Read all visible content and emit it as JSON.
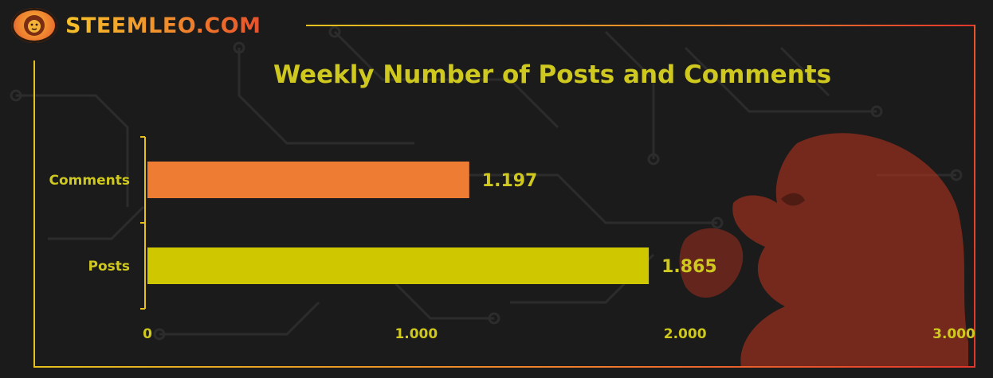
{
  "brand": {
    "name": "STEEMLEO.COM",
    "logo_icon": "lion-head-icon"
  },
  "colors": {
    "background": "#1b1b1b",
    "title": "#cfc81e",
    "comments_bar": "#ee7d33",
    "posts_bar": "#cfc800",
    "frame_yellow": "#e6c11e",
    "frame_red": "#e0352c",
    "watermark": "#c0341e"
  },
  "watermark_icon": "lion-icon",
  "chart_data": {
    "type": "bar",
    "orientation": "horizontal",
    "title": "Weekly Number of Posts and Comments",
    "categories": [
      "Comments",
      "Posts"
    ],
    "values": [
      1197,
      1865
    ],
    "value_labels": [
      "1.197",
      "1.865"
    ],
    "xlim": [
      0,
      3000
    ],
    "x_ticks": [
      0,
      1000,
      2000,
      3000
    ],
    "x_tick_labels": [
      "0",
      "1.000",
      "2.000",
      "3.000"
    ],
    "xlabel": "",
    "ylabel": "",
    "grid": false,
    "legend": "none"
  }
}
